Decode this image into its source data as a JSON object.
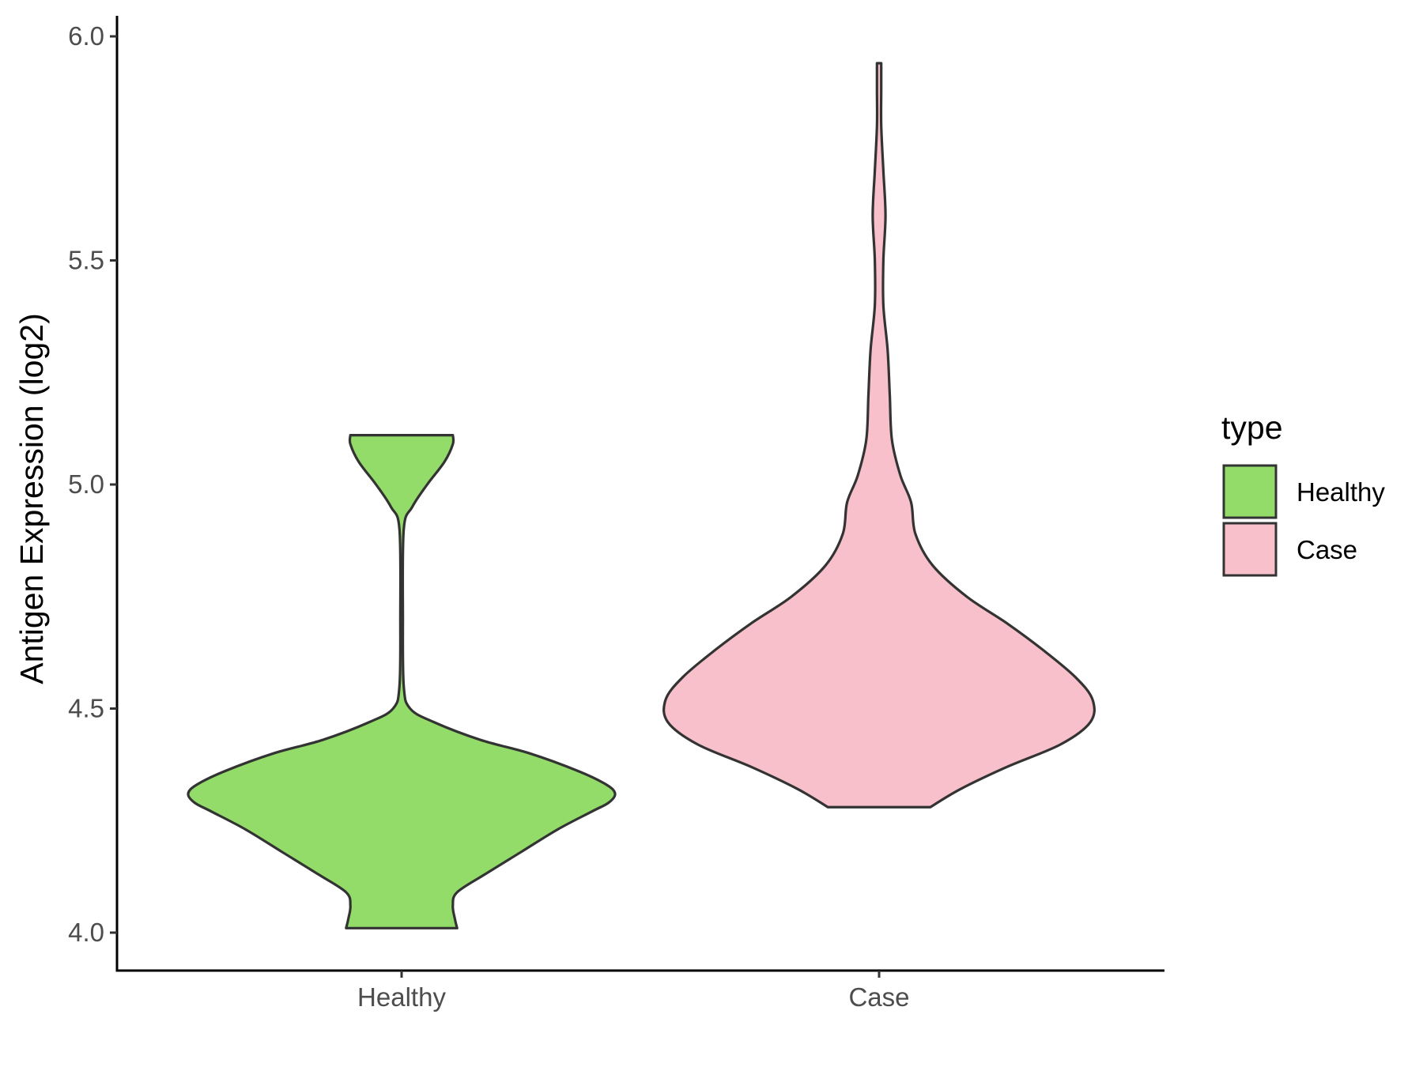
{
  "chart_data": {
    "type": "violin",
    "title": "",
    "xlabel": "",
    "ylabel": "Antigen Expression (log2)",
    "ylim": [
      3.92,
      6.04
    ],
    "yticks": [
      "4.0",
      "4.5",
      "5.0",
      "5.5",
      "6.0"
    ],
    "ytick_values": [
      4.0,
      4.5,
      5.0,
      5.5,
      6.0
    ],
    "categories": [
      "Healthy",
      "Case"
    ],
    "grid": false,
    "legend": {
      "title": "type",
      "position": "right",
      "entries": [
        "Healthy",
        "Case"
      ]
    },
    "series": [
      {
        "name": "Healthy",
        "color": "#93DC69",
        "min": 4.01,
        "max": 5.11,
        "density": [
          [
            4.01,
            0.26
          ],
          [
            4.03,
            0.25
          ],
          [
            4.06,
            0.24
          ],
          [
            4.09,
            0.26
          ],
          [
            4.13,
            0.39
          ],
          [
            4.18,
            0.56
          ],
          [
            4.23,
            0.73
          ],
          [
            4.27,
            0.89
          ],
          [
            4.29,
            0.97
          ],
          [
            4.31,
            1.0
          ],
          [
            4.33,
            0.96
          ],
          [
            4.36,
            0.83
          ],
          [
            4.4,
            0.6
          ],
          [
            4.43,
            0.37
          ],
          [
            4.47,
            0.15
          ],
          [
            4.5,
            0.04
          ],
          [
            4.55,
            0.01
          ],
          [
            4.7,
            0.0
          ],
          [
            4.9,
            0.01
          ],
          [
            4.95,
            0.05
          ],
          [
            5.0,
            0.12
          ],
          [
            5.05,
            0.2
          ],
          [
            5.09,
            0.24
          ],
          [
            5.11,
            0.24
          ]
        ]
      },
      {
        "name": "Case",
        "color": "#F7C0CB",
        "min": 4.28,
        "max": 5.94,
        "density": [
          [
            4.28,
            0.24
          ],
          [
            4.32,
            0.38
          ],
          [
            4.37,
            0.6
          ],
          [
            4.42,
            0.85
          ],
          [
            4.47,
            0.99
          ],
          [
            4.52,
            1.0
          ],
          [
            4.57,
            0.92
          ],
          [
            4.63,
            0.77
          ],
          [
            4.69,
            0.6
          ],
          [
            4.75,
            0.41
          ],
          [
            4.82,
            0.25
          ],
          [
            4.89,
            0.17
          ],
          [
            4.96,
            0.15
          ],
          [
            5.02,
            0.1
          ],
          [
            5.1,
            0.06
          ],
          [
            5.2,
            0.05
          ],
          [
            5.3,
            0.04
          ],
          [
            5.4,
            0.02
          ],
          [
            5.5,
            0.02
          ],
          [
            5.6,
            0.03
          ],
          [
            5.7,
            0.02
          ],
          [
            5.8,
            0.01
          ],
          [
            5.88,
            0.01
          ],
          [
            5.94,
            0.01
          ]
        ]
      }
    ]
  }
}
